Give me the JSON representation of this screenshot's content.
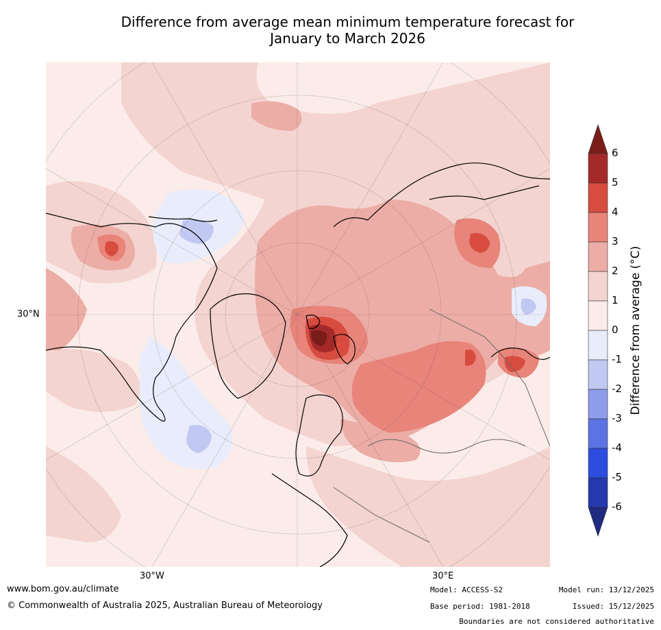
{
  "title": {
    "line1": "Difference from average mean minimum temperature forecast for",
    "line2": "January to March 2026"
  },
  "map": {
    "projection": "north-polar-stereographic",
    "labels": {
      "lat_30n": "30°N",
      "lon_30w": "30°W",
      "lon_30e": "30°E"
    }
  },
  "colorbar": {
    "label": "Difference from average (°C)",
    "ticks": [
      "6",
      "5",
      "4",
      "3",
      "2",
      "1",
      "0",
      "-1",
      "-2",
      "-3",
      "-4",
      "-5",
      "-6"
    ],
    "colors": {
      "gt6": "#7a1c18",
      "5to6": "#a6292a",
      "4to5": "#d84c40",
      "3to4": "#e8847a",
      "2to3": "#ecada6",
      "1to2": "#f4d4d0",
      "0to1": "#fbece9",
      "m1to0": "#e9ecfb",
      "m2tom1": "#c1c8f2",
      "m3tom2": "#8e9cec",
      "m4tom3": "#5c73e4",
      "m5tom4": "#2d4de0",
      "m6tom5": "#2538b0",
      "ltm6": "#1f2a80"
    }
  },
  "footer": {
    "url": "www.bom.gov.au/climate",
    "copyright": "© Commonwealth of Australia 2025, Australian Bureau of Meteorology",
    "model": "Model: ACCESS-S2",
    "base_period": "Base period: 1981-2018",
    "model_run": "Model run: 13/12/2025",
    "issued": "Issued: 15/12/2025",
    "disclaimer": "Boundaries are not considered authoritative"
  }
}
